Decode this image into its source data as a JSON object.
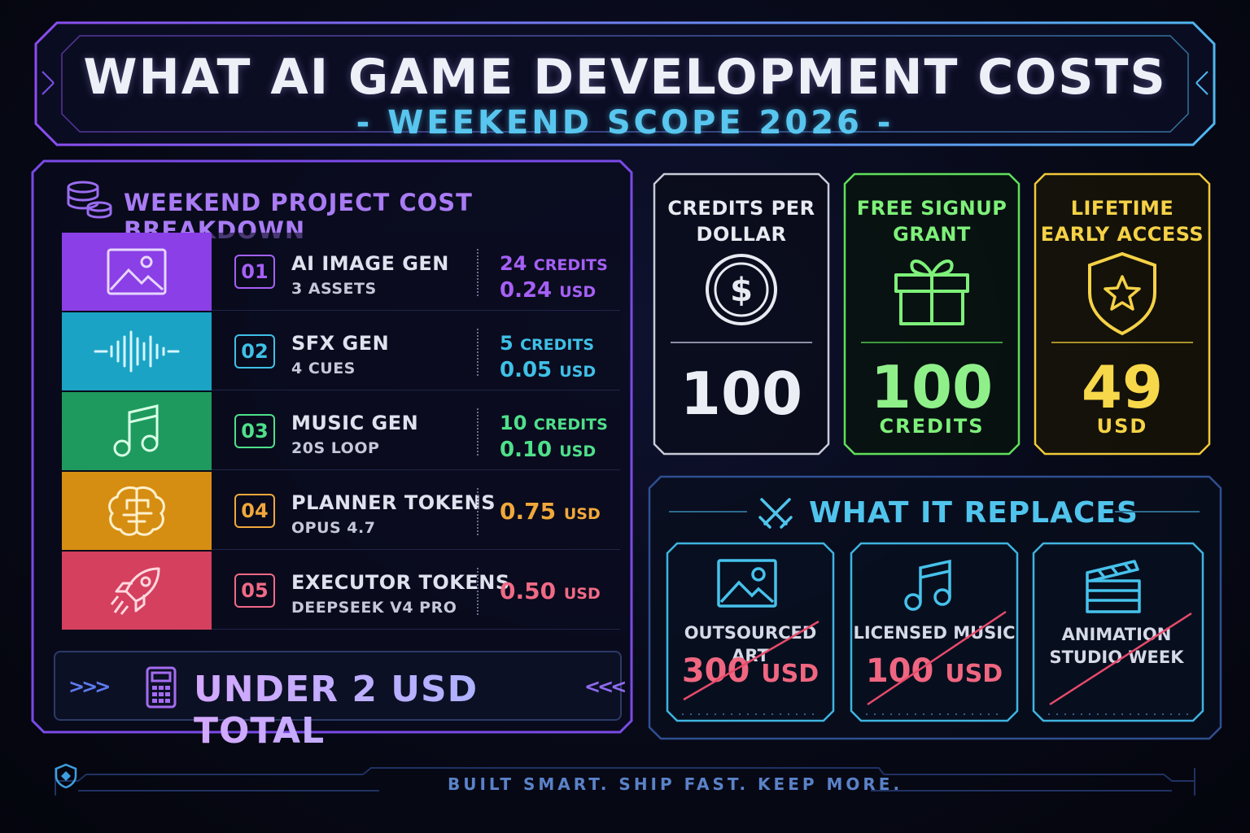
{
  "header": {
    "title": "WHAT AI GAME DEVELOPMENT COSTS",
    "subtitle": "- WEEKEND SCOPE 2026 -"
  },
  "breakdown": {
    "title": "WEEKEND PROJECT COST BREAKDOWN",
    "rows": [
      {
        "num": "01",
        "name": "AI IMAGE GEN",
        "sub": "3 ASSETS",
        "credits": "24",
        "credits_unit": "CREDITS",
        "usd": "0.24",
        "usd_unit": "USD",
        "color": "#a560f5",
        "block_color": "#8b3fe6",
        "icon": "image-icon"
      },
      {
        "num": "02",
        "name": "SFX GEN",
        "sub": "4 CUES",
        "credits": "5",
        "credits_unit": "CREDITS",
        "usd": "0.05",
        "usd_unit": "USD",
        "color": "#3fc0e6",
        "block_color": "#1aa3c4",
        "icon": "waveform-icon"
      },
      {
        "num": "03",
        "name": "MUSIC GEN",
        "sub": "20S LOOP",
        "credits": "10",
        "credits_unit": "CREDITS",
        "usd": "0.10",
        "usd_unit": "USD",
        "color": "#4ee08a",
        "block_color": "#1f9a5e",
        "icon": "music-note-icon"
      },
      {
        "num": "04",
        "name": "PLANNER TOKENS",
        "sub": "OPUS 4.7",
        "usd": "0.75",
        "usd_unit": "USD",
        "color": "#f0a83a",
        "block_color": "#d68e12",
        "icon": "brain-icon"
      },
      {
        "num": "05",
        "name": "EXECUTOR TOKENS",
        "sub": "DEEPSEEK V4 PRO",
        "usd": "0.50",
        "usd_unit": "USD",
        "color": "#f06a86",
        "block_color": "#d4405e",
        "icon": "rocket-icon"
      }
    ],
    "total": "UNDER 2 USD TOTAL",
    "chev_left": ">>>",
    "chev_right": "<<<"
  },
  "stats": [
    {
      "label_line1": "CREDITS PER",
      "label_line2": "DOLLAR",
      "value": "100",
      "unit": "",
      "color": "#e8eaf2",
      "border": "#c8ccd8",
      "icon": "dollar-coin-icon"
    },
    {
      "label_line1": "FREE SIGNUP",
      "label_line2": "GRANT",
      "value": "100",
      "unit": "CREDITS",
      "color": "#7ef07a",
      "border": "#5fe05a",
      "icon": "gift-icon"
    },
    {
      "label_line1": "LIFETIME",
      "label_line2": "EARLY ACCESS",
      "value": "49",
      "unit": "USD",
      "color": "#f5d246",
      "border": "#f0c93a",
      "icon": "shield-star-icon"
    }
  ],
  "replaces": {
    "title": "WHAT IT REPLACES",
    "items": [
      {
        "label_line1": "OUTSOURCED ART",
        "label_line2": "",
        "price": "300",
        "unit": "USD",
        "icon": "image-icon"
      },
      {
        "label_line1": "LICENSED MUSIC",
        "label_line2": "",
        "price": "100",
        "unit": "USD",
        "icon": "music-note-icon"
      },
      {
        "label_line1": "ANIMATION",
        "label_line2": "STUDIO WEEK",
        "price": "",
        "unit": "",
        "icon": "clapperboard-icon"
      }
    ]
  },
  "footer": {
    "tagline": "BUILT SMART. SHIP FAST. KEEP MORE."
  }
}
